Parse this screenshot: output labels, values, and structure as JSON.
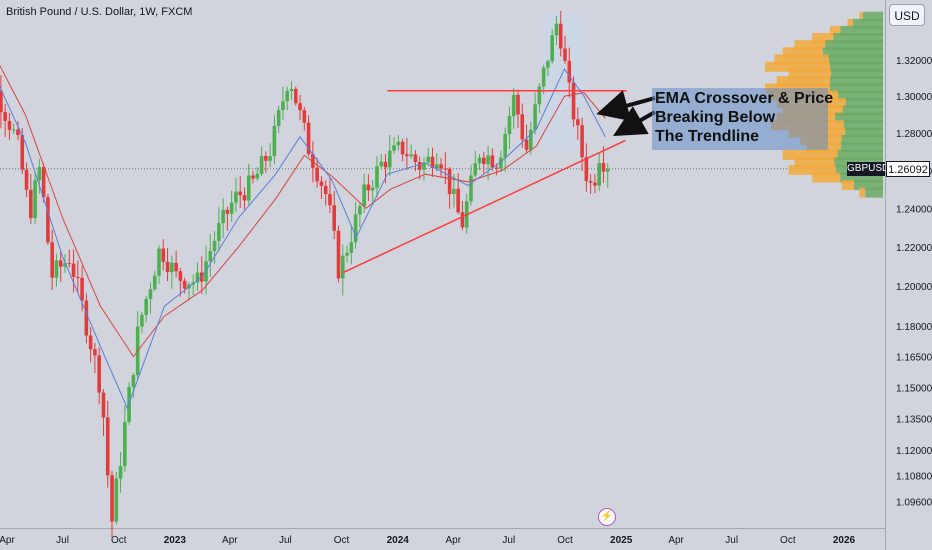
{
  "header": {
    "title": "British Pound / U.S. Dollar, 1W, FXCM",
    "currency": "USD"
  },
  "symbol": {
    "name": "GBPUSD",
    "last_price": "1.26092"
  },
  "annotation": {
    "lines": [
      "EMA Crossover & Price",
      "Breaking Below",
      "The Trendline"
    ]
  },
  "colors": {
    "up": "#4caf50",
    "down": "#e23b3b",
    "ema_fast": "#5b7fd6",
    "ema_slow": "#d64545",
    "trendline": "#ff3b3b",
    "resistance": "#ff3b3b",
    "vp_orange": "#f2a93b",
    "vp_green": "#6aaa64",
    "annotation_box": "#6f90c8"
  },
  "icons": {
    "event": "lightning-icon"
  },
  "chart_data": {
    "type": "candlestick",
    "instrument": "British Pound / U.S. Dollar",
    "timeframe": "1W",
    "x_ticks": [
      "Apr",
      "Jul",
      "Oct",
      "2023",
      "Apr",
      "Jul",
      "Oct",
      "2024",
      "Apr",
      "Jul",
      "Oct",
      "2025",
      "Apr",
      "Jul",
      "Oct",
      "2026"
    ],
    "x_tick_dates": [
      "2022-04-01",
      "2022-07-01",
      "2022-10-01",
      "2023-01-01",
      "2023-04-01",
      "2023-07-01",
      "2023-10-01",
      "2024-01-01",
      "2024-04-01",
      "2024-07-01",
      "2024-10-01",
      "2025-01-01",
      "2025-04-01",
      "2025-07-01",
      "2025-10-01",
      "2026-01-01"
    ],
    "y_ticks": [
      "1.32000",
      "1.30000",
      "1.28000",
      "1.26000",
      "1.24000",
      "1.22000",
      "1.20000",
      "1.18000",
      "1.16500",
      "1.15000",
      "1.13500",
      "1.12000",
      "1.10800",
      "1.09600"
    ],
    "y_tick_values": [
      1.32,
      1.3,
      1.28,
      1.26,
      1.24,
      1.22,
      1.2,
      1.18,
      1.165,
      1.15,
      1.135,
      1.12,
      1.108,
      1.096
    ],
    "y_scale": "log",
    "y_range": [
      1.082,
      1.346
    ],
    "last_price": 1.26092,
    "price_path": [
      [
        "2022-02-01",
        1.357
      ],
      [
        "2022-03-10",
        1.312
      ],
      [
        "2022-04-25",
        1.275
      ],
      [
        "2022-05-15",
        1.237
      ],
      [
        "2022-06-01",
        1.262
      ],
      [
        "2022-06-20",
        1.205
      ],
      [
        "2022-07-20",
        1.215
      ],
      [
        "2022-08-20",
        1.176
      ],
      [
        "2022-09-10",
        1.148
      ],
      [
        "2022-09-26",
        1.085
      ],
      [
        "2022-10-15",
        1.125
      ],
      [
        "2022-11-10",
        1.18
      ],
      [
        "2022-12-15",
        1.22
      ],
      [
        "2023-01-10",
        1.205
      ],
      [
        "2023-02-15",
        1.202
      ],
      [
        "2023-03-15",
        1.225
      ],
      [
        "2023-04-15",
        1.245
      ],
      [
        "2023-05-15",
        1.253
      ],
      [
        "2023-06-15",
        1.272
      ],
      [
        "2023-07-14",
        1.312
      ],
      [
        "2023-08-15",
        1.272
      ],
      [
        "2023-09-15",
        1.245
      ],
      [
        "2023-10-04",
        1.207
      ],
      [
        "2023-11-15",
        1.248
      ],
      [
        "2023-12-15",
        1.265
      ],
      [
        "2024-01-15",
        1.272
      ],
      [
        "2024-02-15",
        1.262
      ],
      [
        "2024-03-15",
        1.27
      ],
      [
        "2024-04-22",
        1.231
      ],
      [
        "2024-05-20",
        1.27
      ],
      [
        "2024-06-20",
        1.265
      ],
      [
        "2024-07-17",
        1.3
      ],
      [
        "2024-08-05",
        1.27
      ],
      [
        "2024-09-01",
        1.31
      ],
      [
        "2024-09-26",
        1.343
      ],
      [
        "2024-10-15",
        1.302
      ],
      [
        "2024-11-10",
        1.26
      ],
      [
        "2024-11-22",
        1.25
      ],
      [
        "2024-12-06",
        1.274
      ],
      [
        "2024-12-12",
        1.261
      ]
    ],
    "ema_fast": [
      [
        "2022-02-01",
        1.34
      ],
      [
        "2022-05-01",
        1.275
      ],
      [
        "2022-07-01",
        1.215
      ],
      [
        "2022-09-01",
        1.17
      ],
      [
        "2022-10-15",
        1.14
      ],
      [
        "2022-12-15",
        1.19
      ],
      [
        "2023-02-15",
        1.205
      ],
      [
        "2023-04-15",
        1.235
      ],
      [
        "2023-06-15",
        1.258
      ],
      [
        "2023-07-25",
        1.278
      ],
      [
        "2023-09-15",
        1.255
      ],
      [
        "2023-10-25",
        1.225
      ],
      [
        "2023-12-15",
        1.258
      ],
      [
        "2024-02-15",
        1.264
      ],
      [
        "2024-04-25",
        1.252
      ],
      [
        "2024-06-20",
        1.265
      ],
      [
        "2024-08-15",
        1.282
      ],
      [
        "2024-09-30",
        1.315
      ],
      [
        "2024-11-01",
        1.3
      ],
      [
        "2024-12-06",
        1.278
      ]
    ],
    "ema_slow": [
      [
        "2022-02-01",
        1.348
      ],
      [
        "2022-05-01",
        1.29
      ],
      [
        "2022-07-01",
        1.235
      ],
      [
        "2022-09-01",
        1.19
      ],
      [
        "2022-10-25",
        1.165
      ],
      [
        "2022-12-15",
        1.185
      ],
      [
        "2023-02-15",
        1.198
      ],
      [
        "2023-04-15",
        1.22
      ],
      [
        "2023-06-15",
        1.245
      ],
      [
        "2023-08-01",
        1.268
      ],
      [
        "2023-09-15",
        1.257
      ],
      [
        "2023-11-10",
        1.24
      ],
      [
        "2023-12-20",
        1.25
      ],
      [
        "2024-02-15",
        1.258
      ],
      [
        "2024-04-25",
        1.254
      ],
      [
        "2024-06-20",
        1.26
      ],
      [
        "2024-08-15",
        1.273
      ],
      [
        "2024-09-30",
        1.3
      ],
      [
        "2024-11-01",
        1.302
      ],
      [
        "2024-12-06",
        1.288
      ]
    ],
    "trendline": [
      [
        "2023-10-04",
        1.207
      ],
      [
        "2025-01-08",
        1.276
      ]
    ],
    "resistance_line": {
      "from": "2023-12-15",
      "to": "2025-01-10",
      "price": 1.303
    },
    "volume_profile": {
      "price_levels": [
        1.344,
        1.34,
        1.336,
        1.332,
        1.328,
        1.324,
        1.32,
        1.316,
        1.312,
        1.308,
        1.304,
        1.3,
        1.296,
        1.292,
        1.288,
        1.284,
        1.28,
        1.276,
        1.272,
        1.268,
        1.264,
        1.26,
        1.256,
        1.252,
        1.248
      ],
      "total": [
        0.2,
        0.3,
        0.45,
        0.6,
        0.75,
        0.85,
        0.92,
        1.0,
        0.8,
        0.9,
        1.0,
        0.95,
        0.9,
        0.85,
        0.9,
        0.95,
        0.8,
        0.7,
        0.65,
        0.85,
        0.75,
        0.8,
        0.6,
        0.35,
        0.2
      ],
      "green_share": [
        0.85,
        0.85,
        0.8,
        0.7,
        0.65,
        0.6,
        0.5,
        0.45,
        0.55,
        0.5,
        0.45,
        0.4,
        0.35,
        0.4,
        0.45,
        0.35,
        0.4,
        0.5,
        0.55,
        0.45,
        0.55,
        0.5,
        0.6,
        0.7,
        0.75
      ]
    }
  }
}
